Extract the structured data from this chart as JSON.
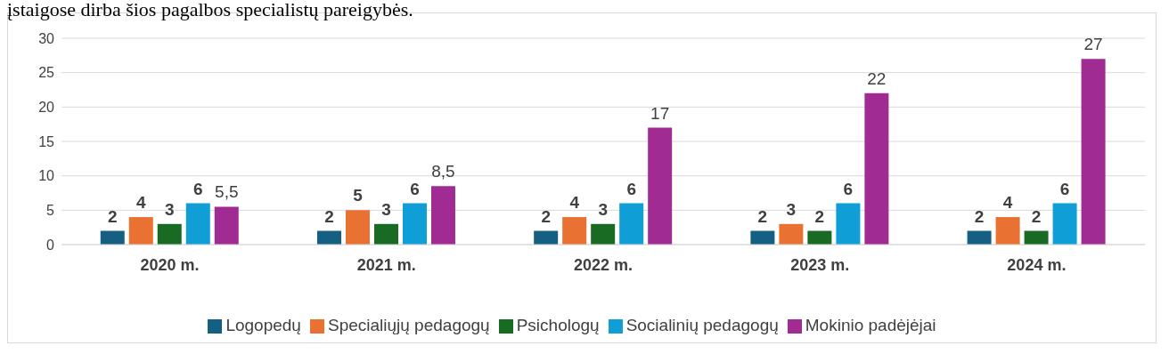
{
  "chart_data": {
    "type": "bar",
    "title": "įstaigose dirba šios pagalbos specialistų pareigybės.",
    "categories": [
      "2020 m.",
      "2021 m.",
      "2022 m.",
      "2023 m.",
      "2024 m."
    ],
    "series": [
      {
        "name": "Logopedų",
        "color": "#156082",
        "values": [
          2,
          2,
          2,
          2,
          2
        ],
        "value_labels": [
          "2",
          "2",
          "2",
          "2",
          "2"
        ]
      },
      {
        "name": "Specialiųjų pedagogų",
        "color": "#e97132",
        "values": [
          4,
          5,
          4,
          3,
          4
        ],
        "value_labels": [
          "4",
          "5",
          "4",
          "3",
          "4"
        ]
      },
      {
        "name": "Psichologų",
        "color": "#196b24",
        "values": [
          3,
          3,
          3,
          2,
          2
        ],
        "value_labels": [
          "3",
          "3",
          "3",
          "2",
          "2"
        ]
      },
      {
        "name": "Socialinių pedagogų",
        "color": "#0f9ed5",
        "values": [
          6,
          6,
          6,
          6,
          6
        ],
        "value_labels": [
          "6",
          "6",
          "6",
          "6",
          "6"
        ]
      },
      {
        "name": "Mokinio padėjėjai",
        "color": "#a02b93",
        "values": [
          5.5,
          8.5,
          17,
          22,
          27
        ],
        "value_labels": [
          "5,5",
          "8,5",
          "17",
          "22",
          "27"
        ]
      }
    ],
    "ylim": [
      0,
      30
    ],
    "yticks": [
      0,
      5,
      10,
      15,
      20,
      25,
      30
    ],
    "grid": "y",
    "legend": "bottom"
  }
}
